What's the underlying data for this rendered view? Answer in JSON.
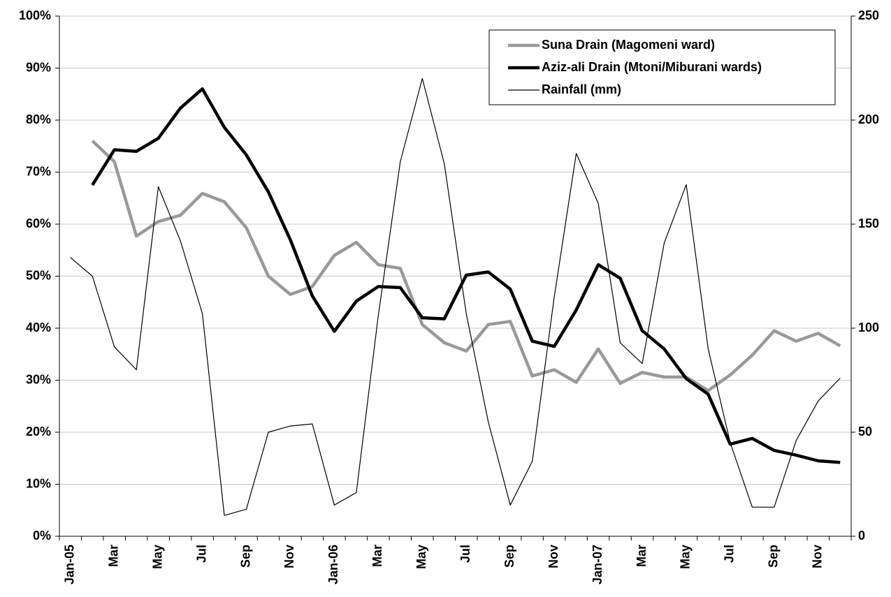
{
  "chart_data": {
    "type": "line",
    "categories": [
      "Jan-05",
      null,
      "Mar",
      null,
      "May",
      null,
      "Jul",
      null,
      "Sep",
      null,
      "Nov",
      null,
      "Jan-06",
      null,
      "Mar",
      null,
      "May",
      null,
      "Jul",
      null,
      "Sep",
      null,
      "Nov",
      null,
      "Jan-07",
      null,
      "Mar",
      null,
      "May",
      null,
      "Jul",
      null,
      "Sep",
      null,
      "Nov",
      null
    ],
    "series": [
      {
        "name": "Suna Drain (Magomeni ward)",
        "color": "#999999",
        "width": 4.5,
        "axis": "y",
        "values": [
          null,
          76,
          72,
          57.7,
          60.5,
          61.7,
          65.9,
          64.3,
          59.3,
          50,
          46.5,
          48,
          54,
          56.5,
          52.2,
          51.5,
          40.7,
          37.2,
          35.6,
          40.7,
          41.3,
          30.8,
          32,
          29.6,
          36,
          29.4,
          31.5,
          30.6,
          30.6,
          28,
          31,
          34.8,
          39.5,
          37.5,
          39,
          36.6
        ]
      },
      {
        "name": "Aziz-ali Drain (Mtoni/Miburani wards)",
        "color": "#000000",
        "width": 4.5,
        "axis": "y",
        "values": [
          null,
          67.5,
          74.3,
          74,
          76.5,
          82.3,
          86,
          78.6,
          73.3,
          66.2,
          57,
          46.2,
          39.4,
          45.2,
          48,
          47.8,
          42,
          41.8,
          50.2,
          50.8,
          47.5,
          37.5,
          36.5,
          43.5,
          52.2,
          49.6,
          39.5,
          36,
          30.3,
          27.3,
          17.7,
          18.8,
          16.5,
          15.6,
          14.5,
          14.2
        ]
      },
      {
        "name": "Rainfall (mm)",
        "color": "#000000",
        "width": 1.2,
        "axis": "y2",
        "values": [
          134,
          125,
          91,
          80,
          168,
          142,
          107,
          10,
          13,
          50,
          53,
          54,
          15,
          21,
          106,
          180,
          220,
          179,
          107,
          55,
          15,
          36,
          115,
          184,
          160,
          93,
          83,
          141,
          169,
          90,
          45,
          14,
          14,
          46,
          65,
          76
        ]
      }
    ],
    "ylim": [
      0,
      100
    ],
    "yticks": [
      {
        "value": 0,
        "label": "0%"
      },
      {
        "value": 10,
        "label": "10%"
      },
      {
        "value": 20,
        "label": "20%"
      },
      {
        "value": 30,
        "label": "30%"
      },
      {
        "value": 40,
        "label": "40%"
      },
      {
        "value": 50,
        "label": "50%"
      },
      {
        "value": 60,
        "label": "60%"
      },
      {
        "value": 70,
        "label": "70%"
      },
      {
        "value": 80,
        "label": "80%"
      },
      {
        "value": 90,
        "label": "90%"
      },
      {
        "value": 100,
        "label": "100%"
      }
    ],
    "y2lim": [
      0,
      250
    ],
    "y2ticks": [
      0,
      50,
      100,
      150,
      200,
      250
    ],
    "grid": true,
    "legend": "upper right"
  }
}
